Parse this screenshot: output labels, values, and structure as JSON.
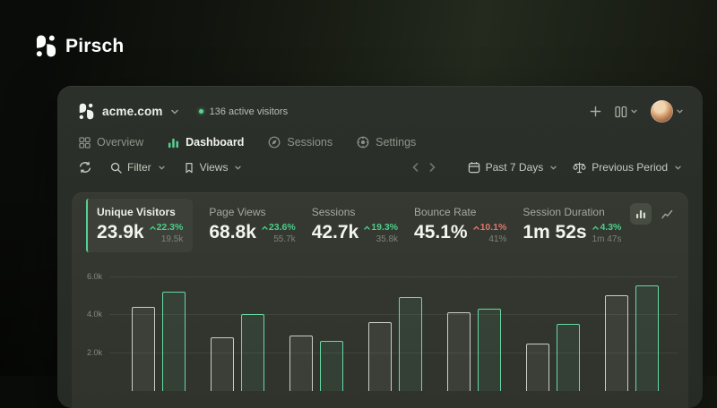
{
  "brand": {
    "name": "Pirsch"
  },
  "header": {
    "site": "acme.com",
    "active_visitors": "136 active visitors"
  },
  "nav": {
    "items": [
      {
        "label": "Overview",
        "icon": "grid-icon",
        "active": false
      },
      {
        "label": "Dashboard",
        "icon": "bar-chart-icon",
        "active": true
      },
      {
        "label": "Sessions",
        "icon": "compass-icon",
        "active": false
      },
      {
        "label": "Settings",
        "icon": "gear-icon",
        "active": false
      }
    ]
  },
  "toolbar": {
    "filter_label": "Filter",
    "views_label": "Views",
    "date_range": "Past 7 Days",
    "comparison": "Previous Period"
  },
  "stats": [
    {
      "label": "Unique Visitors",
      "value": "23.9k",
      "change": "22.3%",
      "direction": "up",
      "trend": "positive",
      "previous": "19.5k",
      "active": true
    },
    {
      "label": "Page Views",
      "value": "68.8k",
      "change": "23.6%",
      "direction": "up",
      "trend": "positive",
      "previous": "55.7k",
      "active": false
    },
    {
      "label": "Sessions",
      "value": "42.7k",
      "change": "19.3%",
      "direction": "up",
      "trend": "positive",
      "previous": "35.8k",
      "active": false
    },
    {
      "label": "Bounce Rate",
      "value": "45.1%",
      "change": "10.1%",
      "direction": "up",
      "trend": "negative",
      "previous": "41%",
      "active": false
    },
    {
      "label": "Session Duration",
      "value": "1m 52s",
      "change": "4.3%",
      "direction": "up",
      "trend": "positive",
      "previous": "1m 47s",
      "active": false
    }
  ],
  "chart_data": {
    "type": "bar",
    "title": "Unique visitors, past 7 days vs previous period",
    "categories": null,
    "x_axis_labels_visible": false,
    "series": [
      {
        "name": "previous_period",
        "color": "#c9cdc5",
        "values": [
          4400,
          2800,
          2900,
          3600,
          4100,
          2500,
          5000
        ]
      },
      {
        "name": "current_period",
        "color": "#66d9a2",
        "values": [
          5200,
          4000,
          2600,
          4900,
          4300,
          3500,
          5500
        ]
      }
    ],
    "y_ticks": [
      {
        "label": "2.0k",
        "value": 2000
      },
      {
        "label": "4.0k",
        "value": 4000
      },
      {
        "label": "6.0k",
        "value": 6000
      }
    ],
    "ylim": [
      0,
      6500
    ],
    "grid": true,
    "legend": "none"
  },
  "colors": {
    "accent_green": "#58cf92",
    "negative_red": "#e0756b",
    "bar_gray": "#c9cdc5",
    "bar_green": "#66d9a2",
    "card_bg": "#2a2e28",
    "panel_bg": "#32362e"
  }
}
